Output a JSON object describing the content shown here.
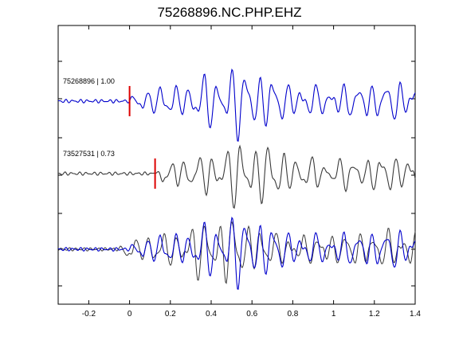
{
  "chart_data": {
    "type": "line",
    "title": "75268896.NC.PHP.EHZ",
    "xlabel": "",
    "ylabel": "",
    "xlim": [
      -0.35,
      1.4
    ],
    "x_ticks": [
      -0.2,
      0,
      0.2,
      0.4,
      0.6,
      0.8,
      1,
      1.2,
      1.4
    ],
    "x_tick_labels": [
      "-0.2",
      "0",
      "0.2",
      "0.4",
      "0.6",
      "0.8",
      "1",
      "1.2",
      "1.4"
    ],
    "grid": false,
    "colors": {
      "reference": "#0000cc",
      "comparison": "#3a3a3a",
      "pick": "#dd0000"
    },
    "traces": [
      {
        "label": "75268896 | 1.00",
        "event_id": "75268896",
        "correlation": 1.0,
        "color": "#0000cc",
        "pick_time": 0.0,
        "peak_time": 0.53,
        "offset": 0.0
      },
      {
        "label": "73527531 | 0.73",
        "event_id": "73527531",
        "correlation": 0.73,
        "color": "#3a3a3a",
        "pick_time": 0.125,
        "peak_time": 0.58,
        "offset": 0.05
      }
    ]
  }
}
